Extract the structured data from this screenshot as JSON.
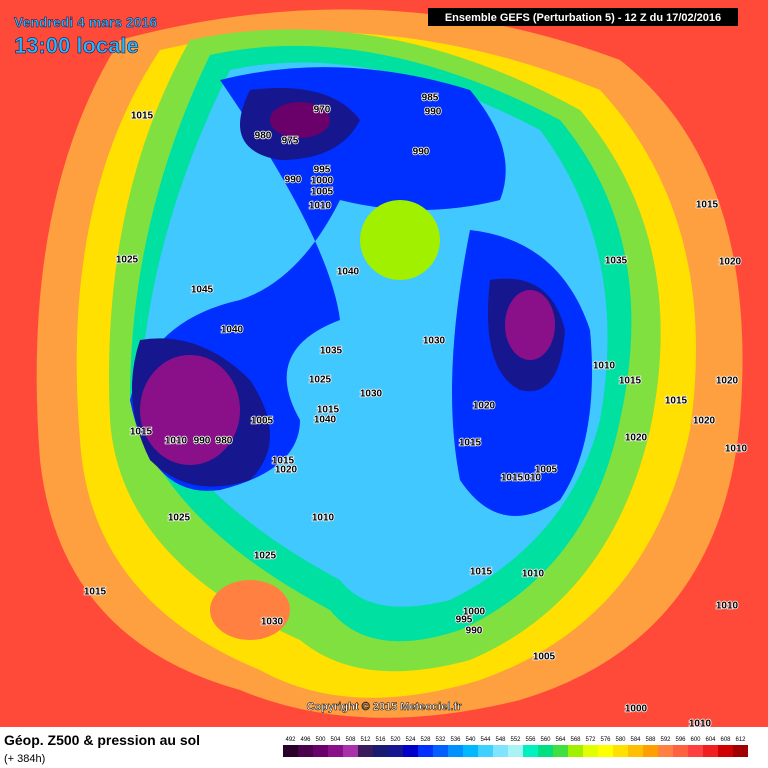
{
  "header": {
    "date": "Vendredi 4 mars 2016",
    "time": "13:00 locale",
    "run": "Ensemble GEFS  (Perturbation 5)  -  12 Z du 17/02/2016"
  },
  "footer": {
    "title": "Géop. Z500 & pression au sol",
    "lead": "(+ 384h)",
    "copyright": "Copyright © 2015 Meteociel.fr"
  },
  "legend": {
    "values": [
      492,
      496,
      500,
      504,
      508,
      512,
      516,
      520,
      524,
      528,
      532,
      536,
      540,
      544,
      548,
      552,
      556,
      560,
      564,
      568,
      572,
      576,
      580,
      584,
      588,
      592,
      596,
      600,
      604,
      608,
      612
    ],
    "colors": [
      "#2a002a",
      "#4a004a",
      "#6a006a",
      "#8a108a",
      "#a830a8",
      "#3a1a5a",
      "#1a1a70",
      "#16168f",
      "#0000c8",
      "#0030ff",
      "#0060ff",
      "#0090ff",
      "#00b8ff",
      "#40d0ff",
      "#80e4ff",
      "#a8f4f4",
      "#00f0c0",
      "#00e080",
      "#40e040",
      "#a0f000",
      "#e0ff00",
      "#ffff00",
      "#ffe000",
      "#ffc000",
      "#ffa000",
      "#ff8040",
      "#ff6040",
      "#ff4040",
      "#f02020",
      "#d00000",
      "#a00000"
    ]
  },
  "isobar_labels": [
    1015,
    980,
    970,
    975,
    985,
    990,
    990,
    995,
    990,
    1000,
    1005,
    1010,
    1025,
    1045,
    1040,
    1040,
    1035,
    1030,
    1025,
    1030,
    1020,
    1015,
    1010,
    990,
    980,
    1005,
    1015,
    1020,
    1015,
    1040,
    1015,
    1005,
    1010,
    1015,
    1010,
    1025,
    1025,
    1015,
    1030,
    1015,
    1010,
    1000,
    995,
    990,
    1005,
    1015,
    1035,
    1020,
    1010,
    1015,
    1020,
    1015,
    1020,
    1020,
    1010,
    1010,
    1000,
    1010
  ]
}
